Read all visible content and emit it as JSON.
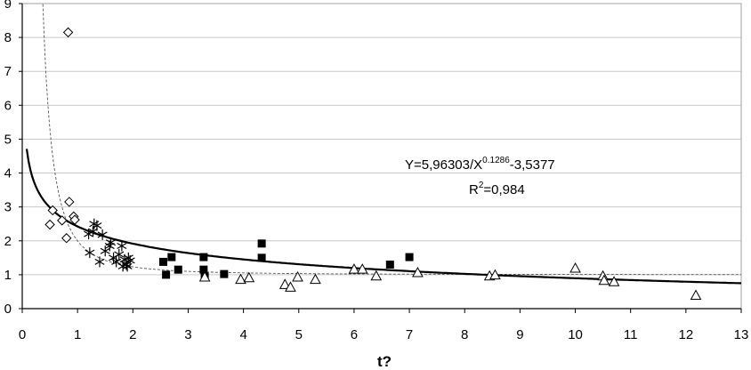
{
  "chart_data": {
    "type": "scatter",
    "title": "",
    "xlabel": "t?",
    "ylabel": "",
    "xlim": [
      0,
      13
    ],
    "ylim": [
      0,
      9
    ],
    "xticks": [
      "0",
      "1",
      "2",
      "3",
      "4",
      "5",
      "6",
      "7",
      "8",
      "9",
      "10",
      "11",
      "12",
      "13"
    ],
    "yticks": [
      "0",
      "1",
      "2",
      "3",
      "4",
      "5",
      "6",
      "7",
      "8",
      "9"
    ],
    "grid": "horizontal",
    "annotations": {
      "equation_main": "Y=5,96303/X",
      "equation_exp": "0.1286",
      "equation_tail": "-3,5377",
      "r2_main": "R",
      "r2_exp": "2",
      "r2_tail": "=0,984"
    },
    "series": [
      {
        "marker": "diamond",
        "points": [
          [
            0.83,
            8.15
          ],
          [
            0.5,
            2.48
          ],
          [
            0.55,
            2.9
          ],
          [
            0.72,
            2.6
          ],
          [
            0.8,
            2.08
          ],
          [
            0.85,
            3.15
          ],
          [
            0.93,
            2.72
          ],
          [
            0.95,
            2.62
          ]
        ]
      },
      {
        "marker": "asterisk",
        "points": [
          [
            1.2,
            2.2
          ],
          [
            1.22,
            1.65
          ],
          [
            1.28,
            2.28
          ],
          [
            1.3,
            2.5
          ],
          [
            1.35,
            2.45
          ],
          [
            1.4,
            1.38
          ],
          [
            1.45,
            2.18
          ],
          [
            1.5,
            1.7
          ],
          [
            1.58,
            1.85
          ],
          [
            1.6,
            1.95
          ],
          [
            1.65,
            1.5
          ],
          [
            1.7,
            1.38
          ],
          [
            1.75,
            1.6
          ],
          [
            1.8,
            1.85
          ],
          [
            1.82,
            1.25
          ],
          [
            1.85,
            1.45
          ],
          [
            1.88,
            1.3
          ],
          [
            1.9,
            1.25
          ],
          [
            1.92,
            1.5
          ],
          [
            1.95,
            1.42
          ]
        ]
      },
      {
        "marker": "square",
        "points": [
          [
            2.55,
            1.38
          ],
          [
            2.6,
            1.0
          ],
          [
            2.7,
            1.52
          ],
          [
            2.82,
            1.15
          ],
          [
            3.28,
            1.52
          ],
          [
            3.28,
            1.15
          ],
          [
            3.3,
            0.95
          ],
          [
            3.65,
            1.02
          ],
          [
            4.33,
            1.92
          ],
          [
            4.33,
            1.5
          ],
          [
            6.65,
            1.3
          ],
          [
            7.0,
            1.52
          ]
        ]
      },
      {
        "marker": "triangle",
        "points": [
          [
            3.3,
            0.92
          ],
          [
            3.95,
            0.85
          ],
          [
            4.1,
            0.9
          ],
          [
            4.75,
            0.7
          ],
          [
            4.85,
            0.62
          ],
          [
            4.98,
            0.92
          ],
          [
            5.3,
            0.85
          ],
          [
            6.0,
            1.15
          ],
          [
            6.15,
            1.15
          ],
          [
            6.4,
            0.95
          ],
          [
            7.15,
            1.05
          ],
          [
            8.45,
            0.95
          ],
          [
            8.55,
            0.98
          ],
          [
            10.0,
            1.18
          ],
          [
            10.5,
            0.95
          ],
          [
            10.52,
            0.82
          ],
          [
            10.7,
            0.78
          ],
          [
            12.18,
            0.38
          ]
        ]
      }
    ],
    "fit_curve": {
      "label": "Y=5,96303/X^0.1286-3,5377",
      "a": 5.96303,
      "b": 0.1286,
      "c": -3.5377,
      "x_range": [
        0.08,
        13
      ]
    },
    "reference_curve": {
      "style": "dashed",
      "form": "1 + A/x^n",
      "A": 1.0,
      "n": 2.1
    }
  }
}
